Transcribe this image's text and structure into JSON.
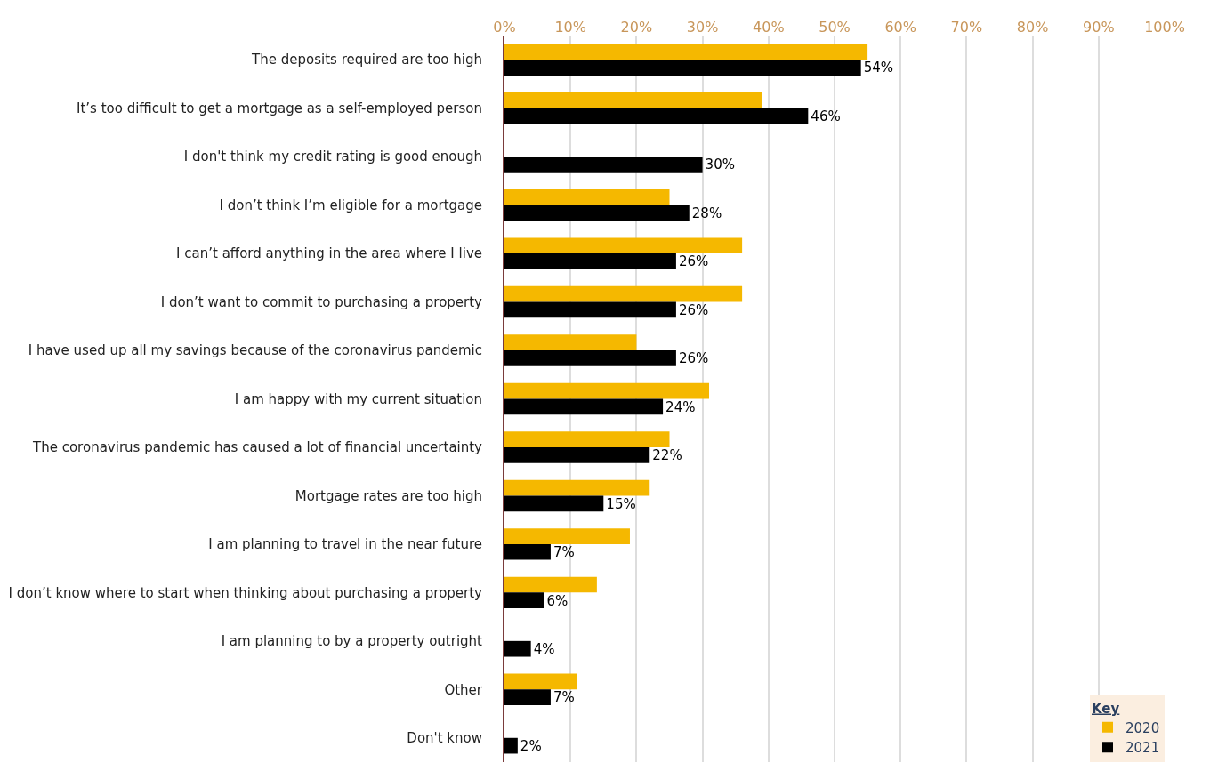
{
  "chart_data": {
    "type": "bar",
    "orientation": "horizontal",
    "categories": [
      "The deposits required are too high",
      "It’s too difficult to get a mortgage as a self-employed person",
      "I don't think my credit rating is good enough",
      "I don’t think I’m eligible for a mortgage",
      "I can’t afford anything in the area where I live",
      "I don’t want to commit to purchasing a property",
      "I have used up all my savings because of the coronavirus pandemic",
      "I am happy with my current situation",
      "The coronavirus pandemic has caused a lot of financial uncertainty",
      "Mortgage rates are too high",
      "I am planning to travel in the near future",
      "I don’t know where to start when thinking about purchasing a property",
      "I am planning to by a property outright",
      "Other",
      "Don't know"
    ],
    "series": [
      {
        "name": "2020",
        "color": "#f5b800",
        "values": [
          55,
          39,
          null,
          25,
          36,
          36,
          20,
          31,
          25,
          22,
          19,
          14,
          null,
          11,
          null
        ]
      },
      {
        "name": "2021",
        "color": "#000000",
        "values": [
          54,
          46,
          30,
          28,
          26,
          26,
          26,
          24,
          22,
          15,
          7,
          6,
          4,
          7,
          2
        ],
        "value_labels": [
          "54%",
          "46%",
          "30%",
          "28%",
          "26%",
          "26%",
          "26%",
          "24%",
          "22%",
          "15%",
          "7%",
          "6%",
          "4%",
          "7%",
          "2%"
        ]
      }
    ],
    "xlim": [
      0,
      100
    ],
    "xticks": [
      {
        "value": 0,
        "label": "0%"
      },
      {
        "value": 10,
        "label": "10%"
      },
      {
        "value": 20,
        "label": "20%"
      },
      {
        "value": 30,
        "label": "30%"
      },
      {
        "value": 40,
        "label": "40%"
      },
      {
        "value": 50,
        "label": "50%"
      },
      {
        "value": 60,
        "label": "60%"
      },
      {
        "value": 70,
        "label": "70%"
      },
      {
        "value": 80,
        "label": "80%"
      },
      {
        "value": 90,
        "label": "90%"
      },
      {
        "value": 100,
        "label": "100%"
      }
    ],
    "grid": "x",
    "legend": "bottom right",
    "legend_title": "Key"
  }
}
